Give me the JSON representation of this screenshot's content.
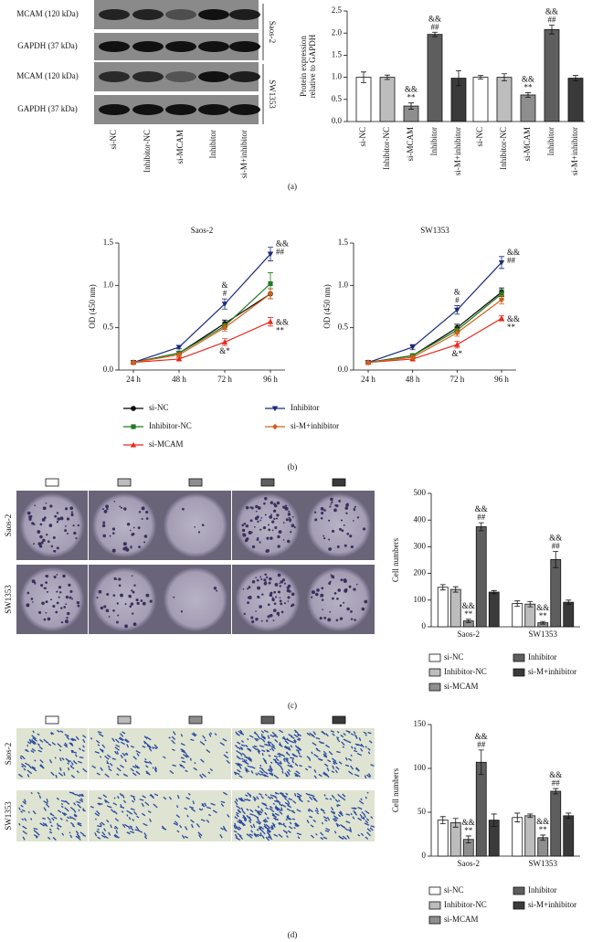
{
  "figure": {
    "panel_labels": [
      "(a)",
      "(b)",
      "(c)",
      "(d)"
    ],
    "blot": {
      "rows": [
        "MCAM (120 kDa)",
        "GAPDH (37 kDa)",
        "MCAM (120 kDa)",
        "GAPDH (37 kDa)"
      ],
      "cell_lines": [
        "Saos-2",
        "SW1353"
      ],
      "lanes": [
        "si-NC",
        "Inhibitor-NC",
        "si-MCAM",
        "Inhibitor",
        "si-M+inhibitor"
      ]
    },
    "colony": {
      "rows": [
        "Saos-2",
        "SW1353"
      ]
    },
    "transwell": {
      "rows": [
        "Saos-2",
        "SW1353"
      ]
    }
  },
  "chart_data": [
    {
      "type": "bar",
      "ylabel": [
        "Protein expression",
        "relative to GAPDH"
      ],
      "categories": [
        "si-NC",
        "Inhibitor-NC",
        "si-MCAM",
        "Inhibitor",
        "si-M+inhibitor",
        "si-NC",
        "Inhibitor-NC",
        "si-MCAM",
        "Inhibitor",
        "si-M+inhibitor"
      ],
      "values": [
        1.0,
        1.0,
        0.35,
        1.97,
        0.98,
        1.0,
        1.0,
        0.6,
        2.08,
        0.98
      ],
      "errors": [
        0.12,
        0.05,
        0.07,
        0.05,
        0.17,
        0.04,
        0.08,
        0.05,
        0.1,
        0.06
      ],
      "colors": [
        "#ffffff",
        "#bdbdbd",
        "#8e8e8e",
        "#5e5e5e",
        "#3a3a3a",
        "#ffffff",
        "#bdbdbd",
        "#8e8e8e",
        "#5e5e5e",
        "#3a3a3a"
      ],
      "annotations": [
        null,
        null,
        [
          "&&",
          "**"
        ],
        [
          "&&",
          "##"
        ],
        null,
        null,
        null,
        [
          "&&",
          "**"
        ],
        [
          "&&",
          "##"
        ],
        null
      ],
      "ylim": [
        0,
        2.5
      ],
      "yticks": [
        {
          "value": 0,
          "label": "0.0"
        },
        0.5,
        {
          "value": 1,
          "label": "1.0"
        },
        1.5,
        {
          "value": 2,
          "label": "2.0"
        },
        2.5
      ]
    },
    {
      "type": "line",
      "title": "Saos-2",
      "ylabel": "OD (450 nm)",
      "categories": [
        "24 h",
        "48 h",
        "72 h",
        "96 h"
      ],
      "ylim": [
        0,
        1.5
      ],
      "yticks": [
        {
          "value": 0,
          "label": "0.0"
        },
        0.5,
        {
          "value": 1,
          "label": "1.0"
        },
        1.5
      ],
      "series": [
        {
          "name": "si-NC",
          "color": "#000000",
          "marker": "circle",
          "values": [
            0.09,
            0.2,
            0.55,
            0.9
          ],
          "errors": [
            0.01,
            0.02,
            0.04,
            0.06
          ]
        },
        {
          "name": "Inhibitor-NC",
          "color": "#1e7b1e",
          "marker": "square",
          "values": [
            0.09,
            0.2,
            0.52,
            1.02
          ],
          "errors": [
            0.01,
            0.02,
            0.04,
            0.13
          ]
        },
        {
          "name": "si-MCAM",
          "color": "#e8291c",
          "marker": "triangle",
          "values": [
            0.09,
            0.13,
            0.33,
            0.57
          ],
          "errors": [
            0.01,
            0.02,
            0.04,
            0.05
          ],
          "annotations": [
            null,
            null,
            [
              "&*"
            ],
            [
              "&&",
              "**"
            ]
          ]
        },
        {
          "name": "Inhibitor",
          "color": "#1c2a78",
          "marker": "triangle-down",
          "values": [
            0.09,
            0.27,
            0.78,
            1.37
          ],
          "errors": [
            0.01,
            0.02,
            0.06,
            0.08
          ],
          "annotations": [
            null,
            null,
            [
              "&",
              "#"
            ],
            [
              "&&",
              "##"
            ]
          ]
        },
        {
          "name": "si-M+inhibitor",
          "color": "#d4601a",
          "marker": "diamond",
          "values": [
            0.09,
            0.18,
            0.5,
            0.9
          ],
          "errors": [
            0.01,
            0.02,
            0.04,
            0.06
          ]
        }
      ]
    },
    {
      "type": "line",
      "title": "SW1353",
      "ylabel": "OD (450 nm)",
      "categories": [
        "24 h",
        "48 h",
        "72 h",
        "96 h"
      ],
      "ylim": [
        0,
        1.5
      ],
      "yticks": [
        {
          "value": 0,
          "label": "0.0"
        },
        0.5,
        {
          "value": 1,
          "label": "1.0"
        },
        1.5
      ],
      "series": [
        {
          "color": "#000000",
          "marker": "circle",
          "values": [
            0.09,
            0.17,
            0.5,
            0.92
          ],
          "errors": [
            0.01,
            0.02,
            0.04,
            0.05
          ]
        },
        {
          "color": "#1e7b1e",
          "marker": "square",
          "values": [
            0.09,
            0.17,
            0.47,
            0.9
          ],
          "errors": [
            0.01,
            0.02,
            0.04,
            0.05
          ]
        },
        {
          "color": "#e8291c",
          "marker": "triangle",
          "values": [
            0.09,
            0.13,
            0.3,
            0.61
          ],
          "errors": [
            0.01,
            0.02,
            0.04,
            0.03
          ],
          "annotations": [
            null,
            null,
            [
              "&*"
            ],
            [
              "&&",
              "**"
            ]
          ]
        },
        {
          "color": "#1c2a78",
          "marker": "triangle-down",
          "values": [
            0.09,
            0.27,
            0.71,
            1.27
          ],
          "errors": [
            0.01,
            0.03,
            0.05,
            0.07
          ],
          "annotations": [
            null,
            null,
            [
              "&",
              "#"
            ],
            [
              "&&",
              "##"
            ]
          ]
        },
        {
          "color": "#d4601a",
          "marker": "diamond",
          "values": [
            0.09,
            0.15,
            0.44,
            0.83
          ],
          "errors": [
            0.01,
            0.02,
            0.04,
            0.05
          ]
        }
      ]
    },
    {
      "type": "bar",
      "ylabel": "Cell numbers",
      "categories": [
        "Saos-2",
        "SW1353"
      ],
      "ylim": [
        0,
        500
      ],
      "yticks": [
        0,
        100,
        200,
        300,
        400,
        500
      ],
      "series": [
        {
          "name": "si-NC",
          "color": "#ffffff",
          "values": [
            148,
            87
          ],
          "errors": [
            10,
            10
          ]
        },
        {
          "name": "Inhibitor-NC",
          "color": "#bdbdbd",
          "values": [
            140,
            85
          ],
          "errors": [
            10,
            10
          ]
        },
        {
          "name": "si-MCAM",
          "color": "#8e8e8e",
          "values": [
            22,
            15
          ],
          "errors": [
            6,
            5
          ],
          "annotations": [
            [
              "&&",
              "**"
            ],
            [
              "&&",
              "**"
            ]
          ]
        },
        {
          "name": "Inhibitor",
          "color": "#5e5e5e",
          "values": [
            375,
            252
          ],
          "errors": [
            15,
            30
          ],
          "annotations": [
            [
              "&&",
              "##"
            ],
            [
              "&&",
              "##"
            ]
          ]
        },
        {
          "name": "si-M+inhibitor",
          "color": "#3a3a3a",
          "values": [
            130,
            92
          ],
          "errors": [
            6,
            8
          ]
        }
      ]
    },
    {
      "type": "bar",
      "ylabel": "Cell numbers",
      "categories": [
        "Saos-2",
        "SW1353"
      ],
      "ylim": [
        0,
        150
      ],
      "yticks": [
        0,
        50,
        100,
        150
      ],
      "series": [
        {
          "name": "si-NC",
          "color": "#ffffff",
          "values": [
            41,
            44
          ],
          "errors": [
            4,
            5
          ]
        },
        {
          "name": "Inhibitor-NC",
          "color": "#bdbdbd",
          "values": [
            38,
            46
          ],
          "errors": [
            5,
            2
          ]
        },
        {
          "name": "si-MCAM",
          "color": "#8e8e8e",
          "values": [
            19,
            21
          ],
          "errors": [
            4,
            3
          ],
          "annotations": [
            [
              "&&",
              "**"
            ],
            [
              "&&",
              "**"
            ]
          ]
        },
        {
          "name": "Inhibitor",
          "color": "#5e5e5e",
          "values": [
            107,
            74
          ],
          "errors": [
            14,
            3
          ],
          "annotations": [
            [
              "&&",
              "##"
            ],
            [
              "&&",
              "##"
            ]
          ]
        },
        {
          "name": "si-M+inhibitor",
          "color": "#3a3a3a",
          "values": [
            41,
            46
          ],
          "errors": [
            7,
            3
          ]
        }
      ]
    }
  ]
}
